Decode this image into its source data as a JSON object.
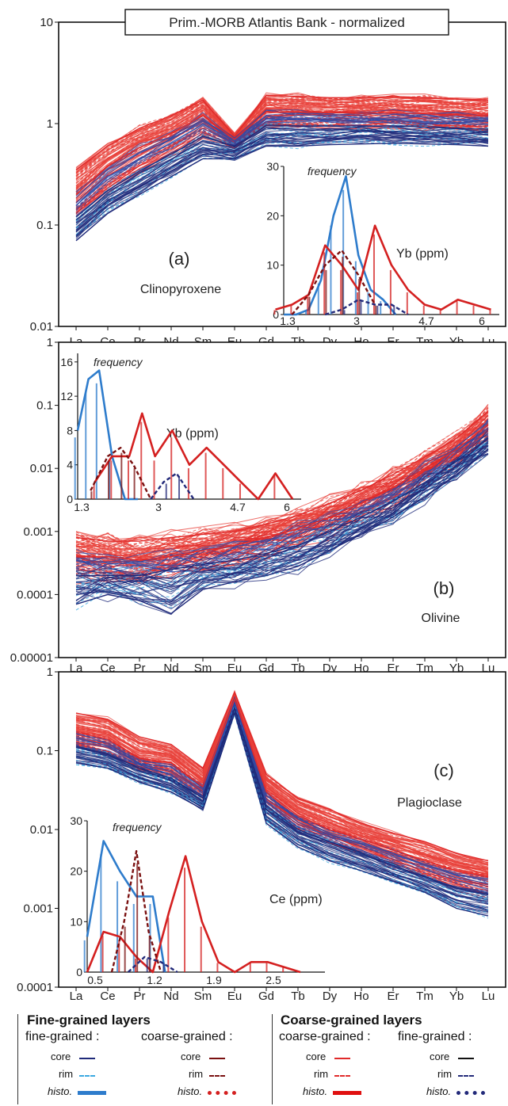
{
  "chart_data": [
    {
      "type": "line",
      "title": "Prim.-MORB Atlantis Bank - normalized",
      "panel_label": "(a)",
      "mineral": "Clinopyroxene",
      "x": [
        "La",
        "Ce",
        "Pr",
        "Nd",
        "Sm",
        "Eu",
        "Gd",
        "Tb",
        "Dy",
        "Ho",
        "Er",
        "Tm",
        "Yb",
        "Lu"
      ],
      "ytick_labels": [
        "10",
        "1",
        "0.1",
        "0.01"
      ],
      "ylim": [
        0.01,
        10
      ],
      "yscale": "log",
      "series": [
        {
          "name": "coarse-grained layers: coarse-grained core (upper)",
          "color": "#e02a2a",
          "values": [
            0.35,
            0.6,
            0.9,
            1.2,
            1.7,
            0.75,
            1.9,
            1.85,
            1.8,
            1.8,
            1.85,
            1.8,
            1.75,
            1.7
          ]
        },
        {
          "name": "coarse-grained layers: coarse-grained core (mid)",
          "color": "#e02a2a",
          "values": [
            0.2,
            0.38,
            0.58,
            0.8,
            1.2,
            0.7,
            1.3,
            1.3,
            1.28,
            1.27,
            1.28,
            1.25,
            1.22,
            1.2
          ]
        },
        {
          "name": "fine-grained layers: fine-grained core (mid)",
          "color": "#1f2a7a",
          "values": [
            0.12,
            0.22,
            0.34,
            0.5,
            0.75,
            0.6,
            0.95,
            0.95,
            0.95,
            0.95,
            0.95,
            0.92,
            0.9,
            0.88
          ]
        },
        {
          "name": "fine-grained layers: fine-grained core (lower)",
          "color": "#1f2a7a",
          "values": [
            0.07,
            0.13,
            0.2,
            0.3,
            0.45,
            0.45,
            0.6,
            0.6,
            0.62,
            0.63,
            0.64,
            0.63,
            0.62,
            0.6
          ]
        }
      ],
      "inset": {
        "label": "frequency",
        "variable": "Yb (ppm)",
        "xtick_labels": [
          "1.3",
          "3",
          "4.7",
          "6"
        ],
        "ytick_labels": [
          "0",
          "10",
          "20",
          "30"
        ],
        "xlim": [
          1.3,
          6.5
        ],
        "ylim": [
          0,
          30
        ],
        "series": [
          {
            "name": "fine-grained histo.",
            "color": "#2e7ccc",
            "x": [
              1.3,
              1.6,
              1.9,
              2.2,
              2.5,
              2.8,
              3.1,
              3.4,
              3.7,
              4.0
            ],
            "values": [
              0,
              0,
              1,
              7,
              20,
              28,
              12,
              5,
              3,
              0
            ]
          },
          {
            "name": "coarse-grained histo.",
            "color": "#d42020",
            "x": [
              1.1,
              1.5,
              1.9,
              2.3,
              2.7,
              3.1,
              3.5,
              3.9,
              4.3,
              4.7,
              5.1,
              5.5,
              5.9,
              6.3
            ],
            "values": [
              1,
              2,
              4,
              14,
              10,
              5,
              18,
              10,
              5,
              2,
              1,
              3,
              2,
              1
            ]
          },
          {
            "name": "coarse-grained (fine layers) histo.",
            "color": "#7a1010",
            "x": [
              1.5,
              1.9,
              2.3,
              2.7,
              3.1,
              3.5
            ],
            "values": [
              0,
              4,
              10,
              13,
              8,
              2
            ]
          },
          {
            "name": "fine-grained (coarse layers) histo.",
            "color": "#232a7a",
            "x": [
              2.3,
              2.7,
              3.1,
              3.5,
              3.9,
              4.3
            ],
            "values": [
              0,
              1,
              3,
              2,
              2,
              0
            ]
          }
        ]
      }
    },
    {
      "type": "line",
      "panel_label": "(b)",
      "mineral": "Olivine",
      "x": [
        "La",
        "Ce",
        "Pr",
        "Nd",
        "Sm",
        "Eu",
        "Gd",
        "Tb",
        "Dy",
        "Ho",
        "Er",
        "Tm",
        "Yb",
        "Lu"
      ],
      "ytick_labels": [
        "1",
        "0.1",
        "0.01",
        "0.001",
        "0.0001",
        "0.00001"
      ],
      "ylim": [
        1e-05,
        1
      ],
      "yscale": "log",
      "series": [
        {
          "name": "coarse-grained core (upper)",
          "color": "#e02a2a",
          "values": [
            0.0008,
            0.0007,
            0.0007,
            0.0008,
            0.0009,
            0.001,
            0.0013,
            0.0018,
            0.0028,
            0.0045,
            0.008,
            0.015,
            0.03,
            0.08
          ]
        },
        {
          "name": "coarse-grained core (mid)",
          "color": "#e02a2a",
          "values": [
            0.0004,
            0.0004,
            0.00035,
            0.0004,
            0.0005,
            0.0006,
            0.0008,
            0.0011,
            0.0017,
            0.0028,
            0.005,
            0.01,
            0.02,
            0.05
          ]
        },
        {
          "name": "fine-grained core (mid)",
          "color": "#1f2a7a",
          "values": [
            0.0002,
            0.0002,
            0.0002,
            0.00025,
            0.0003,
            0.00035,
            0.00045,
            0.0006,
            0.001,
            0.0017,
            0.003,
            0.006,
            0.013,
            0.03
          ]
        },
        {
          "name": "fine-grained core (lower)",
          "color": "#1f2a7a",
          "values": [
            7e-05,
            0.0001,
            8e-05,
            5e-05,
            0.00012,
            0.00016,
            0.0002,
            0.00028,
            0.0005,
            0.0009,
            0.0017,
            0.0035,
            0.008,
            0.02
          ]
        }
      ],
      "inset": {
        "label": "frequency",
        "variable": "Yb (ppm)",
        "xtick_labels": [
          "1.3",
          "3",
          "4.7",
          "6"
        ],
        "ytick_labels": [
          "0",
          "4",
          "8",
          "12",
          "16"
        ],
        "xlim": [
          1.1,
          6.3
        ],
        "ylim": [
          0,
          17
        ],
        "series": [
          {
            "name": "fine-grained histo.",
            "color": "#2e7ccc",
            "x": [
              1.1,
              1.35,
              1.6,
              1.9,
              2.2,
              2.5
            ],
            "values": [
              8,
              14,
              15,
              5,
              0,
              0
            ]
          },
          {
            "name": "coarse-grained histo.",
            "color": "#d42020",
            "x": [
              1.5,
              1.9,
              2.3,
              2.6,
              2.9,
              3.3,
              3.7,
              4.1,
              4.5,
              4.9,
              5.3,
              5.7,
              6.1
            ],
            "values": [
              2,
              5,
              5,
              10,
              5,
              8,
              4,
              6,
              4,
              2,
              0,
              3,
              0
            ]
          },
          {
            "name": "coarse-grained (fine layers) histo.",
            "color": "#7a1010",
            "x": [
              1.4,
              1.8,
              2.1,
              2.4,
              2.8
            ],
            "values": [
              1,
              5,
              6,
              4,
              0
            ]
          },
          {
            "name": "fine-grained (coarse layers) histo.",
            "color": "#232a7a",
            "x": [
              2.8,
              3.1,
              3.4,
              3.8
            ],
            "values": [
              0,
              2,
              3,
              0
            ]
          }
        ]
      }
    },
    {
      "type": "line",
      "panel_label": "(c)",
      "mineral": "Plagioclase",
      "x": [
        "La",
        "Ce",
        "Pr",
        "Nd",
        "Sm",
        "Eu",
        "Gd",
        "Tb",
        "Dy",
        "Ho",
        "Er",
        "Tm",
        "Yb",
        "Lu"
      ],
      "ytick_labels": [
        "1",
        "0.1",
        "0.01",
        "0.001",
        "0.0001"
      ],
      "ylim": [
        0.0001,
        1
      ],
      "yscale": "log",
      "series": [
        {
          "name": "coarse-grained core (upper)",
          "color": "#e02a2a",
          "values": [
            0.3,
            0.25,
            0.15,
            0.12,
            0.06,
            0.55,
            0.05,
            0.025,
            0.018,
            0.012,
            0.009,
            0.007,
            0.005,
            0.004
          ]
        },
        {
          "name": "coarse-grained core (mid)",
          "color": "#e02a2a",
          "values": [
            0.17,
            0.14,
            0.08,
            0.07,
            0.035,
            0.45,
            0.03,
            0.015,
            0.01,
            0.0075,
            0.0055,
            0.004,
            0.003,
            0.0025
          ]
        },
        {
          "name": "fine-grained core (mid)",
          "color": "#1f2a7a",
          "values": [
            0.11,
            0.09,
            0.06,
            0.045,
            0.025,
            0.35,
            0.02,
            0.01,
            0.007,
            0.005,
            0.0035,
            0.0025,
            0.0018,
            0.0015
          ]
        },
        {
          "name": "fine-grained core (lower)",
          "color": "#1f2a7a",
          "values": [
            0.07,
            0.06,
            0.04,
            0.03,
            0.018,
            0.3,
            0.012,
            0.006,
            0.004,
            0.003,
            0.0022,
            0.0016,
            0.001,
            0.0008
          ]
        }
      ],
      "inset": {
        "label": "frequency",
        "variable": "Ce (ppm)",
        "xtick_labels": [
          "0.5",
          "1.2",
          "1.9",
          "2.5"
        ],
        "ytick_labels": [
          "0",
          "10",
          "20",
          "30"
        ],
        "xlim": [
          0.4,
          3.3
        ],
        "ylim": [
          0,
          30
        ],
        "series": [
          {
            "name": "fine-grained histo.",
            "color": "#2e7ccc",
            "x": [
              0.4,
              0.6,
              0.8,
              1.0,
              1.2,
              1.35
            ],
            "values": [
              7,
              26,
              20,
              15,
              15,
              0
            ]
          },
          {
            "name": "coarse-grained histo.",
            "color": "#d42020",
            "x": [
              0.4,
              0.6,
              0.8,
              1.0,
              1.2,
              1.4,
              1.6,
              1.8,
              2.0,
              2.2,
              2.4,
              2.6,
              2.8,
              3.0
            ],
            "values": [
              0,
              8,
              7,
              3,
              0,
              12,
              23,
              10,
              2,
              0,
              2,
              2,
              1,
              0
            ]
          },
          {
            "name": "coarse-grained (fine layers) histo.",
            "color": "#7a1010",
            "x": [
              0.7,
              0.85,
              1.0,
              1.15,
              1.3
            ],
            "values": [
              0,
              10,
              24,
              8,
              0
            ]
          },
          {
            "name": "fine-grained (coarse layers) histo.",
            "color": "#232a7a",
            "x": [
              0.9,
              1.1,
              1.3,
              1.5
            ],
            "values": [
              0,
              3,
              2,
              0
            ]
          }
        ]
      }
    }
  ],
  "legend": {
    "left": {
      "title": "Fine-grained layers",
      "col1_heading": "fine-grained :",
      "col2_heading": "coarse-grained :",
      "rows": [
        "core",
        "rim",
        "histo."
      ]
    },
    "right": {
      "title": "Coarse-grained layers",
      "col1_heading": "coarse-grained :",
      "col2_heading": "fine-grained :",
      "rows": [
        "core",
        "rim",
        "histo."
      ]
    },
    "colors": {
      "fine_core": "#1f2a7a",
      "fine_rim": "#3aa8e0",
      "fine_histo": "#2e7ccc",
      "coarse_core": "#7a1010",
      "coarse_rim": "#7a1010",
      "coarse_histo": "#d42020",
      "cg_core": "#e02a2a",
      "cg_rim": "#e02a2a",
      "cg_histo": "#e01010",
      "fg_core": "#111111",
      "fg_rim": "#232a7a",
      "fg_histo": "#232a7a"
    }
  }
}
